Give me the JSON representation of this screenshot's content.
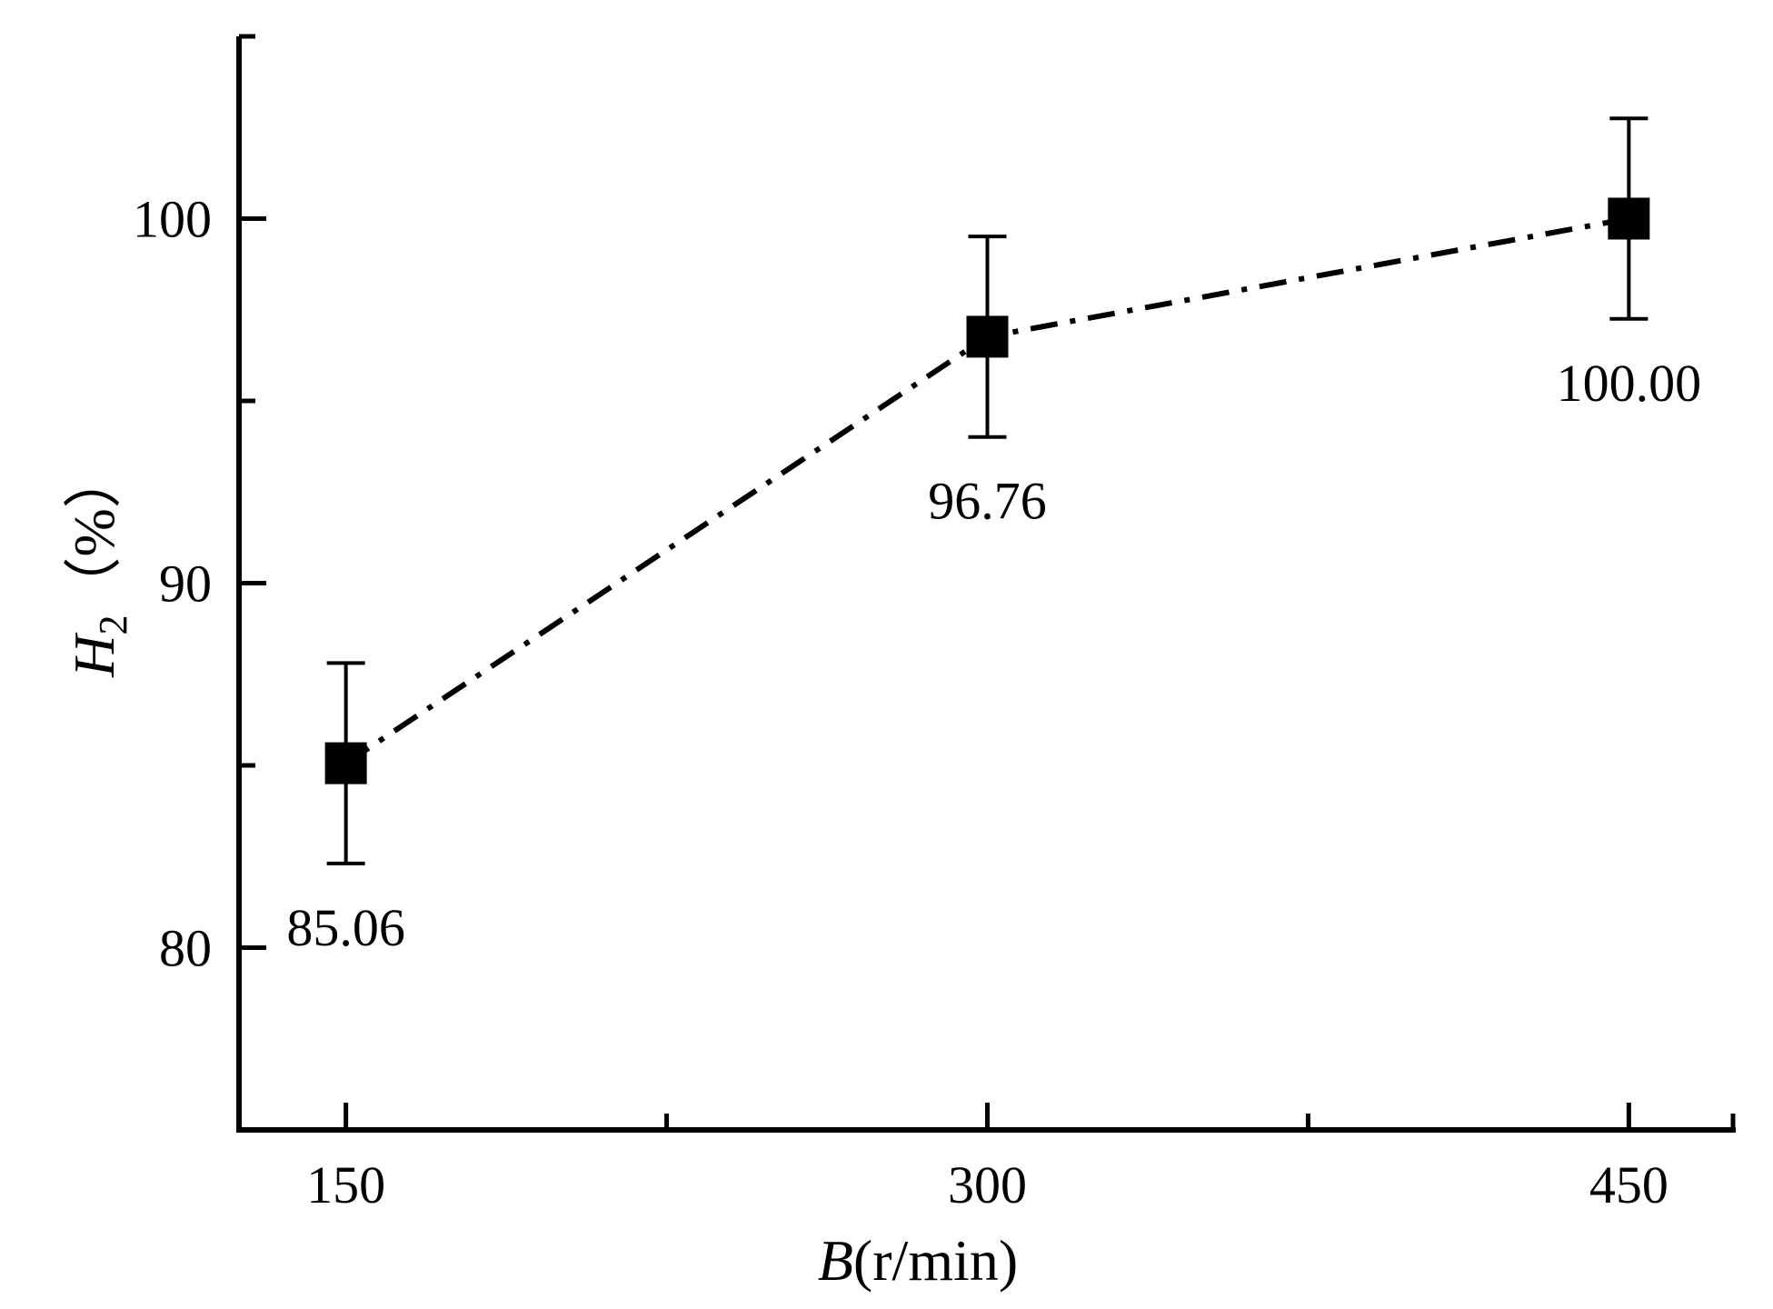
{
  "chart_data": {
    "type": "line",
    "x": [
      150,
      300,
      450
    ],
    "xticks": [
      150,
      300,
      450
    ],
    "xlim": [
      125,
      475
    ],
    "ylim": [
      75,
      105
    ],
    "yticks": [
      80,
      90,
      100
    ],
    "xlabel": {
      "var": "B",
      "unit": "(r/min)"
    },
    "ylabel": {
      "var": "H",
      "sub": "2",
      "unit": "（%）"
    },
    "series": [
      {
        "values": [
          85.06,
          96.76,
          100.0
        ],
        "error": [
          2.75,
          2.75,
          2.75
        ],
        "labels": [
          "85.06",
          "96.76",
          "100.00"
        ],
        "marker": "square",
        "line_style": "dash-dot",
        "color": "#000000"
      }
    ],
    "grid": false,
    "legend": "none"
  }
}
